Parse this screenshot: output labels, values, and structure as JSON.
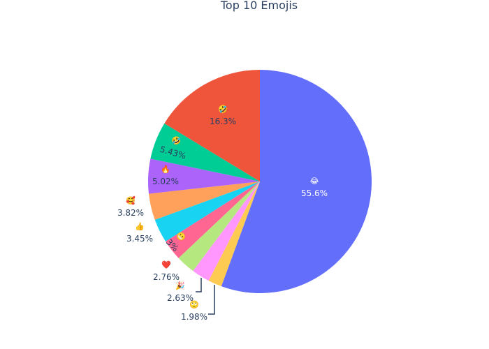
{
  "chart_data": {
    "type": "pie",
    "title": "Top 10 Emojis",
    "slices": [
      {
        "emoji": "😂",
        "value": 55.6,
        "label": "55.6%",
        "color": "#636efa"
      },
      {
        "emoji": "🙄",
        "value": 1.98,
        "label": "1.98%",
        "color": "#fecb52"
      },
      {
        "emoji": "🎉",
        "value": 2.63,
        "label": "2.63%",
        "color": "#ff97ff"
      },
      {
        "emoji": "❤️",
        "value": 2.76,
        "label": "2.76%",
        "color": "#b6e880"
      },
      {
        "emoji": "😬",
        "value": 3.0,
        "label": "3%",
        "color": "#ff6692"
      },
      {
        "emoji": "👍",
        "value": 3.45,
        "label": "3.45%",
        "color": "#19d3f3"
      },
      {
        "emoji": "🥰",
        "value": 3.82,
        "label": "3.82%",
        "color": "#ffa15a"
      },
      {
        "emoji": "🔥",
        "value": 5.02,
        "label": "5.02%",
        "color": "#ab63fa"
      },
      {
        "emoji": "🤣",
        "value": 5.43,
        "label": "5.43%",
        "color": "#00cc96"
      },
      {
        "emoji": "🤣",
        "value": 16.3,
        "label": "16.3%",
        "color": "#ef553b"
      }
    ],
    "legend": "none"
  }
}
